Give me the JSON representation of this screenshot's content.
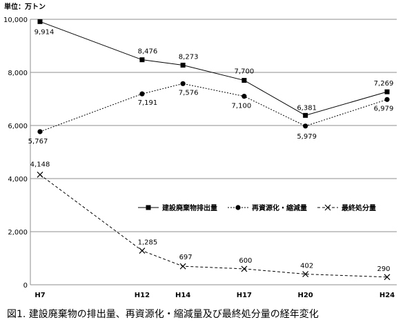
{
  "chart_data": {
    "type": "line",
    "title": "図1. 建設廃棄物の排出量、再資源化・縮減量及び最終処分量の経年変化",
    "unit_label": "単位：万トン",
    "x": [
      "H7",
      "H12",
      "H14",
      "H17",
      "H20",
      "H24"
    ],
    "x_years": [
      7,
      12,
      14,
      17,
      20,
      24
    ],
    "ylim": [
      0,
      10000
    ],
    "yticks": [
      0,
      2000,
      4000,
      6000,
      8000,
      10000
    ],
    "ytick_labels": [
      "0",
      "2,000",
      "4,000",
      "6,000",
      "8,000",
      "10,000"
    ],
    "grid": "horizontal",
    "legend_position": "right-middle",
    "series": [
      {
        "name": "建設廃棄物排出量",
        "marker": "square",
        "line": "solid",
        "values": [
          9914,
          8476,
          8273,
          7700,
          6381,
          7269
        ],
        "labels": [
          "9,914",
          "8,476",
          "8,273",
          "7,700",
          "6,381",
          "7,269"
        ]
      },
      {
        "name": "再資源化・縮減量",
        "marker": "circle",
        "line": "dotted",
        "values": [
          5767,
          7191,
          7576,
          7100,
          5979,
          6979
        ],
        "labels": [
          "5,767",
          "7,191",
          "7,576",
          "7,100",
          "5,979",
          "6,979"
        ]
      },
      {
        "name": "最終処分量",
        "marker": "cross",
        "line": "dashed",
        "values": [
          4148,
          1285,
          697,
          600,
          402,
          290
        ],
        "labels": [
          "4,148",
          "1,285",
          "697",
          "600",
          "402",
          "290"
        ]
      }
    ]
  }
}
